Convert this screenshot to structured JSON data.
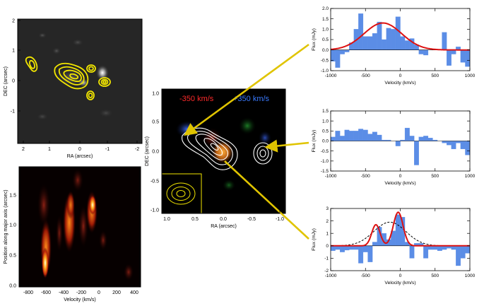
{
  "panels": {
    "image_tl": {
      "xlabel": "RA (arcsec)",
      "ylabel": "DEC (arcsec)",
      "xticks": [
        "2",
        "1",
        "0",
        "-1",
        "-2"
      ],
      "yticks": [
        "2",
        "1",
        "0",
        "-1"
      ]
    },
    "pv": {
      "xlabel": "Velocity (km/s)",
      "ylabel": "Position along major axis (arcsec)",
      "xticks": [
        "-800",
        "-600",
        "-400",
        "-200",
        "0",
        "200",
        "400"
      ],
      "yticks": [
        "0.0",
        "0.5",
        "1.0",
        "1.5"
      ]
    },
    "center": {
      "xlabel": "RA (arcsec)",
      "ylabel": "DEC (arcsec)",
      "xticks": [
        "1.0",
        "0.5",
        "0.0",
        "-0.5",
        "-1.0"
      ],
      "yticks": [
        "1.0",
        "0.5",
        "0.0",
        "-0.5",
        "-1.0"
      ],
      "label_red": "-350 km/s",
      "label_blue": "+350 km/s"
    }
  },
  "chart_data": [
    {
      "type": "bar",
      "id": "spectrum-1",
      "xlabel": "Velocity (km/s)",
      "ylabel": "Flux (mJy)",
      "xlim": [
        -1000,
        1000
      ],
      "ylim": [
        -1.0,
        2.0
      ],
      "xticks": [
        -1000,
        -500,
        0,
        500,
        1000
      ],
      "yticks": [
        -1.0,
        -0.5,
        0.0,
        0.5,
        1.0,
        1.5,
        2.0
      ],
      "bin_width": 66.7,
      "bins": [
        -967,
        -900,
        -833,
        -767,
        -700,
        -633,
        -567,
        -500,
        -433,
        -367,
        -300,
        -233,
        -167,
        -100,
        -33,
        33,
        100,
        167,
        233,
        300,
        367,
        433,
        500,
        567,
        633,
        700,
        767,
        833,
        900,
        967
      ],
      "values": [
        -0.55,
        -0.85,
        -0.2,
        -0.1,
        0.35,
        1.0,
        1.75,
        0.65,
        0.65,
        0.8,
        1.35,
        0.5,
        1.05,
        1.0,
        1.6,
        0.65,
        0.45,
        0.55,
        0.25,
        -0.2,
        -0.25,
        0.0,
        0.05,
        0.0,
        0.85,
        -0.75,
        -0.2,
        0.15,
        -0.6,
        -0.8
      ],
      "fit": {
        "amp": 1.3,
        "center": -250,
        "sigma": 270,
        "color": "#dd1111"
      },
      "bar_color": "#5b8de6"
    },
    {
      "type": "bar",
      "id": "spectrum-2",
      "xlabel": "Velocity (km/s)",
      "ylabel": "Flux (mJy)",
      "xlim": [
        -1000,
        1000
      ],
      "ylim": [
        -1.5,
        1.5
      ],
      "xticks": [
        -1000,
        -500,
        0,
        500,
        1000
      ],
      "yticks": [
        -1.5,
        -1.0,
        -0.5,
        0.0,
        0.5,
        1.0,
        1.5
      ],
      "bin_width": 66.7,
      "bins": [
        -967,
        -900,
        -833,
        -767,
        -700,
        -633,
        -567,
        -500,
        -433,
        -367,
        -300,
        -233,
        -167,
        -100,
        -33,
        33,
        100,
        167,
        233,
        300,
        367,
        433,
        500,
        567,
        633,
        700,
        767,
        833,
        900,
        967
      ],
      "values": [
        0.2,
        0.5,
        0.25,
        0.55,
        0.5,
        0.5,
        0.6,
        0.55,
        0.35,
        0.45,
        0.3,
        0.05,
        0.05,
        0.0,
        -0.25,
        0.05,
        0.65,
        0.25,
        -1.2,
        0.2,
        0.25,
        0.15,
        0.05,
        0.0,
        -0.1,
        -0.2,
        -0.4,
        -0.1,
        -0.4,
        -0.7
      ],
      "bar_color": "#5b8de6"
    },
    {
      "type": "bar",
      "id": "spectrum-3",
      "xlabel": "Velocity (km/s)",
      "ylabel": "Flux (mJy)",
      "xlim": [
        -1000,
        1000
      ],
      "ylim": [
        -2,
        3
      ],
      "xticks": [
        -1000,
        -500,
        0,
        500,
        1000
      ],
      "yticks": [
        -2,
        -1,
        0,
        1,
        2,
        3
      ],
      "bin_width": 66.7,
      "bins": [
        -967,
        -900,
        -833,
        -767,
        -700,
        -633,
        -567,
        -500,
        -433,
        -367,
        -300,
        -233,
        -167,
        -100,
        -33,
        33,
        100,
        167,
        233,
        300,
        367,
        433,
        500,
        567,
        633,
        700,
        767,
        833,
        900,
        967
      ],
      "values": [
        -0.4,
        -0.3,
        -0.5,
        -0.35,
        -0.3,
        -0.3,
        -1.4,
        -0.5,
        -1.3,
        0.3,
        1.5,
        1.0,
        0.5,
        1.2,
        2.5,
        2.3,
        0.3,
        -1.0,
        0.2,
        0.2,
        -1.0,
        -0.3,
        -0.3,
        -0.4,
        -0.3,
        -0.2,
        -0.3,
        -1.6,
        -1.0,
        -0.6
      ],
      "fit_double": {
        "a1": 1.7,
        "c1": -350,
        "s1": 60,
        "a2": 2.7,
        "c2": -30,
        "s2": 70,
        "color": "#dd1111"
      },
      "fit_dashed": {
        "amp": 1.9,
        "center": -150,
        "sigma": 230,
        "color": "#000000"
      },
      "bar_color": "#5b8de6"
    }
  ],
  "colors": {
    "contour": "#f2e600",
    "arrow": "#e0c400",
    "white_contour": "#ffffff",
    "red_label": "#ff2a2a",
    "blue_label": "#3a7bff"
  }
}
